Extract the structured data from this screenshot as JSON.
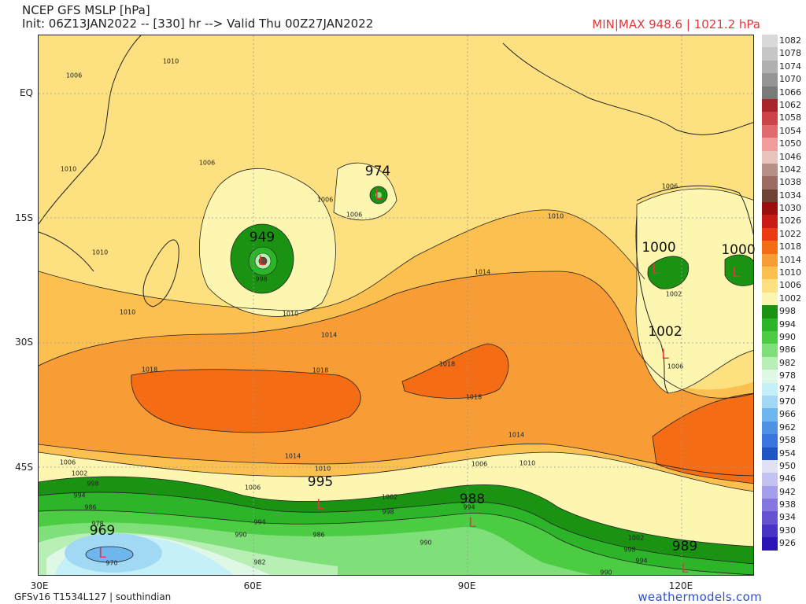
{
  "header": {
    "title": "NCEP GFS MSLP [hPa]",
    "init_line": "Init: 06Z13JAN2022 -- [330] hr --> Valid Thu 00Z27JAN2022",
    "minmax": "MIN|MAX 948.6 | 1021.2 hPa"
  },
  "axes": {
    "y_labels": [
      "EQ",
      "15S",
      "30S",
      "45S"
    ],
    "x_labels": [
      "30E",
      "60E",
      "90E",
      "120E"
    ]
  },
  "colorbar": {
    "levels": [
      "1082",
      "1078",
      "1074",
      "1070",
      "1066",
      "1062",
      "1058",
      "1054",
      "1050",
      "1046",
      "1042",
      "1038",
      "1034",
      "1030",
      "1026",
      "1022",
      "1018",
      "1014",
      "1010",
      "1006",
      "1002",
      "998",
      "994",
      "990",
      "986",
      "982",
      "978",
      "974",
      "970",
      "966",
      "962",
      "958",
      "954",
      "950",
      "946",
      "942",
      "938",
      "934",
      "930",
      "926"
    ],
    "colors": [
      "#d9d9d9",
      "#c6c6c6",
      "#b0b0b0",
      "#959595",
      "#7a7a7a",
      "#a8262b",
      "#cc4348",
      "#e06a6d",
      "#f19b9b",
      "#e8c4bd",
      "#b88f86",
      "#9c6c62",
      "#6e4336",
      "#9b0f0f",
      "#c81c14",
      "#ec3b12",
      "#f46c14",
      "#f89c36",
      "#fbc050",
      "#fde181",
      "#fdf6b0",
      "#1a9312",
      "#2db52a",
      "#4ccc42",
      "#7fe07a",
      "#b7efb4",
      "#dff8e6",
      "#c5f0f7",
      "#a1d9f5",
      "#6fb5ee",
      "#4e92e3",
      "#3a74dd",
      "#1e55c4",
      "#e1e1f6",
      "#c3c3f2",
      "#a49eec",
      "#8577e1",
      "#6551d2",
      "#4733c5",
      "#2a14b5"
    ]
  },
  "lows": [
    {
      "label": "974"
    },
    {
      "label": "949"
    },
    {
      "label": "1000"
    },
    {
      "label": "1000"
    },
    {
      "label": "1002"
    },
    {
      "label": "995"
    },
    {
      "label": "988"
    },
    {
      "label": "969"
    },
    {
      "label": "989"
    }
  ],
  "low_marker": "L",
  "contour_labels": [
    "1006",
    "1010",
    "1010",
    "1010",
    "1006",
    "1006",
    "1006",
    "1010",
    "1014",
    "1014",
    "1018",
    "1018",
    "1018",
    "1018",
    "1014",
    "1014",
    "1010",
    "1010",
    "1006",
    "1006",
    "1002",
    "998",
    "994",
    "986",
    "978",
    "970",
    "994",
    "990",
    "986",
    "982",
    "1002",
    "998",
    "994",
    "990",
    "1002",
    "998",
    "994",
    "990",
    "1006",
    "1002",
    "1006",
    "998",
    "1010",
    "1010",
    "1006"
  ],
  "footer": {
    "model": "GFSv16 T1534L127 | southindian",
    "site": "weathermodels.com"
  }
}
